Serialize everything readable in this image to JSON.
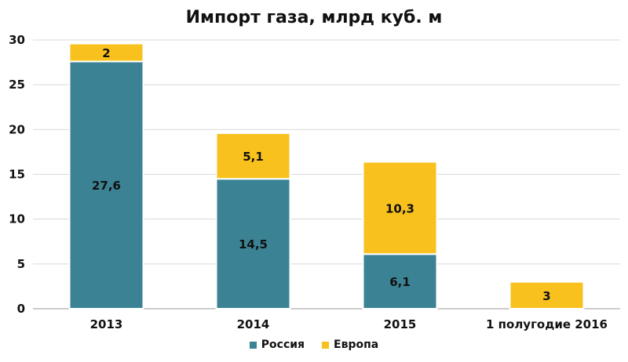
{
  "chart_data": {
    "type": "bar",
    "stacked": true,
    "title": "Импорт газа, млрд куб. м",
    "categories": [
      "2013",
      "2014",
      "2015",
      "1 полугодие 2016"
    ],
    "series": [
      {
        "name": "Россия",
        "color": "#3b8294",
        "values": [
          27.6,
          14.5,
          6.1,
          0
        ],
        "labels": [
          "27,6",
          "14,5",
          "6,1",
          ""
        ]
      },
      {
        "name": "Европа",
        "color": "#f8c11d",
        "values": [
          2,
          5.1,
          10.3,
          3
        ],
        "labels": [
          "2",
          "5,1",
          "10,3",
          "3"
        ]
      }
    ],
    "ylim": [
      0,
      30
    ],
    "yticks": [
      "0",
      "5",
      "10",
      "15",
      "20",
      "25",
      "30"
    ],
    "grid": true,
    "legend": "bottom"
  }
}
